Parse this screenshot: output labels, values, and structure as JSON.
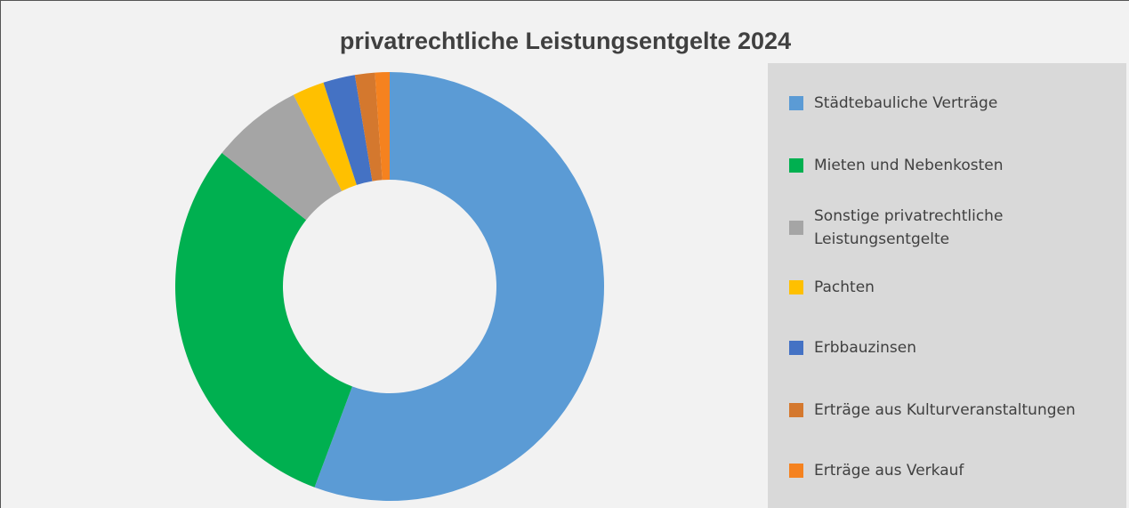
{
  "chart_data": {
    "type": "donut",
    "title": "privatrechtliche Leistungsentgelte 2024",
    "categories": [
      "Städtebauliche Verträge",
      "Mieten und Nebenkosten",
      "Sonstige privatrechtliche Leistungsentgelte",
      "Pachten",
      "Erbbauzinsen",
      "Erträge aus Kulturveranstaltungen",
      "Erträge aus Verkauf"
    ],
    "values": [
      55.7,
      30,
      6.9,
      2.4,
      2.4,
      1.5,
      1.1
    ],
    "colors": [
      "#5b9bd5",
      "#00b050",
      "#a5a5a5",
      "#ffc000",
      "#4472c4",
      "#d4782e",
      "#f5821f"
    ],
    "legend": "right"
  }
}
